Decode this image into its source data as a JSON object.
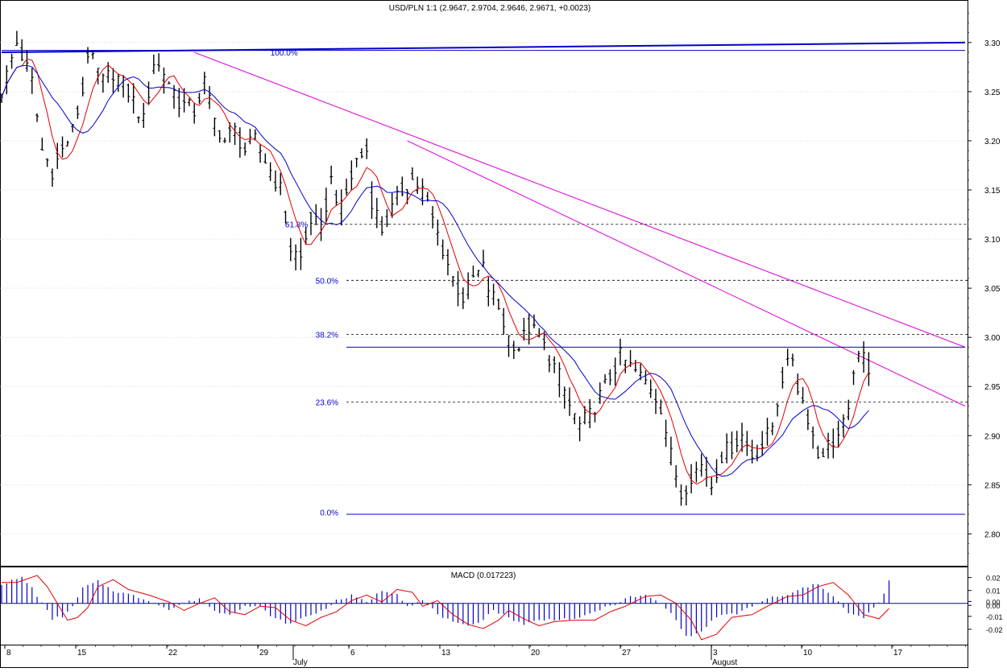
{
  "chart_data": [
    {
      "type": "candlestick",
      "title": "USD/PLN 1:1 (2.9647, 2.9704, 2.9646, 2.9671, +0.0023)",
      "ylim": [
        2.77,
        3.34
      ],
      "y_ticks": [
        "2.80",
        "2.85",
        "2.90",
        "2.95",
        "3.00",
        "3.05",
        "3.10",
        "3.15",
        "3.20",
        "3.25",
        "3.30"
      ],
      "x_tick_labels": [
        "8",
        "15",
        "22",
        "29",
        "6",
        "13",
        "20",
        "27",
        "3",
        "10",
        "17"
      ],
      "month_labels": [
        "July",
        "August"
      ],
      "grid": "horizontal-dotted",
      "series_colors": {
        "price": "#000000",
        "ma_fast": "#e00000",
        "ma_slow": "#0000cc",
        "trendlines": "#dd00dd",
        "fib": "#0000cc"
      },
      "price_path_approx": [
        [
          0,
          3.25
        ],
        [
          3,
          3.3
        ],
        [
          6,
          3.26
        ],
        [
          8,
          3.19
        ],
        [
          10,
          3.17
        ],
        [
          12,
          3.19
        ],
        [
          14,
          3.21
        ],
        [
          16,
          3.25
        ],
        [
          17,
          3.29
        ],
        [
          20,
          3.26
        ],
        [
          22,
          3.27
        ],
        [
          25,
          3.25
        ],
        [
          28,
          3.22
        ],
        [
          30,
          3.28
        ],
        [
          32,
          3.27
        ],
        [
          35,
          3.24
        ],
        [
          38,
          3.23
        ],
        [
          40,
          3.26
        ],
        [
          42,
          3.22
        ],
        [
          44,
          3.2
        ],
        [
          46,
          3.21
        ],
        [
          48,
          3.19
        ],
        [
          50,
          3.2
        ],
        [
          52,
          3.18
        ],
        [
          55,
          3.15
        ],
        [
          57,
          3.09
        ],
        [
          59,
          3.08
        ],
        [
          61,
          3.12
        ],
        [
          63,
          3.11
        ],
        [
          65,
          3.16
        ],
        [
          67,
          3.13
        ],
        [
          70,
          3.18
        ],
        [
          72,
          3.19
        ],
        [
          73,
          3.14
        ],
        [
          75,
          3.11
        ],
        [
          77,
          3.13
        ],
        [
          79,
          3.15
        ],
        [
          81,
          3.16
        ],
        [
          83,
          3.15
        ],
        [
          85,
          3.12
        ],
        [
          87,
          3.09
        ],
        [
          89,
          3.06
        ],
        [
          91,
          3.04
        ],
        [
          93,
          3.06
        ],
        [
          95,
          3.07
        ],
        [
          96,
          3.05
        ],
        [
          98,
          3.03
        ],
        [
          100,
          3.0
        ],
        [
          102,
          2.99
        ],
        [
          104,
          3.01
        ],
        [
          106,
          3.0
        ],
        [
          108,
          2.98
        ],
        [
          110,
          2.96
        ],
        [
          112,
          2.93
        ],
        [
          114,
          2.91
        ],
        [
          116,
          2.92
        ],
        [
          118,
          2.94
        ],
        [
          120,
          2.96
        ],
        [
          122,
          2.98
        ],
        [
          124,
          2.97
        ],
        [
          126,
          2.96
        ],
        [
          128,
          2.95
        ],
        [
          130,
          2.93
        ],
        [
          132,
          2.88
        ],
        [
          134,
          2.84
        ],
        [
          136,
          2.86
        ],
        [
          138,
          2.87
        ],
        [
          140,
          2.85
        ],
        [
          142,
          2.88
        ],
        [
          144,
          2.89
        ],
        [
          146,
          2.9
        ],
        [
          148,
          2.88
        ],
        [
          150,
          2.89
        ],
        [
          152,
          2.91
        ],
        [
          154,
          2.96
        ],
        [
          156,
          2.98
        ],
        [
          157,
          2.95
        ],
        [
          159,
          2.92
        ],
        [
          161,
          2.88
        ],
        [
          163,
          2.89
        ],
        [
          165,
          2.9
        ],
        [
          167,
          2.92
        ],
        [
          168,
          2.97
        ],
        [
          170,
          2.98
        ],
        [
          171,
          2.97
        ]
      ],
      "overlays": {
        "resistance_top": {
          "from": [
            0,
            3.29
          ],
          "to": [
            190,
            3.3
          ]
        },
        "trend_upper": {
          "from": [
            38,
            3.29
          ],
          "to": [
            190,
            2.99
          ]
        },
        "trend_lower": {
          "from": [
            80,
            3.2
          ],
          "to": [
            190,
            2.93
          ]
        },
        "h_line_299": {
          "from": [
            68,
            2.99
          ],
          "to": [
            190,
            2.99
          ]
        },
        "h_line_282": {
          "from": [
            68,
            2.82
          ],
          "to": [
            190,
            2.82
          ]
        }
      },
      "fib_levels": [
        {
          "label": "100.0%",
          "value": 3.29,
          "from": 60
        },
        {
          "label": "61.8%",
          "value": 3.115,
          "from": 62
        },
        {
          "label": "50.0%",
          "value": 3.058,
          "from": 68
        },
        {
          "label": "38.2%",
          "value": 3.003,
          "from": 68
        },
        {
          "label": "23.6%",
          "value": 2.934,
          "from": 68
        },
        {
          "label": "0.0%",
          "value": 2.822,
          "from": 68
        }
      ]
    },
    {
      "type": "bar",
      "title": "MACD (0.017223)",
      "ylim": [
        -0.03,
        0.026
      ],
      "y_ticks": [
        "0.02",
        "0.01",
        "0.00",
        "0.00",
        "-0.01",
        "-0.02"
      ],
      "macd_path_approx": [
        [
          0,
          0.015
        ],
        [
          4,
          0.02
        ],
        [
          6,
          0.012
        ],
        [
          8,
          0.0
        ],
        [
          10,
          -0.012
        ],
        [
          12,
          -0.01
        ],
        [
          14,
          -0.003
        ],
        [
          16,
          0.012
        ],
        [
          19,
          0.017
        ],
        [
          22,
          0.01
        ],
        [
          26,
          0.006
        ],
        [
          30,
          0.001
        ],
        [
          33,
          -0.005
        ],
        [
          36,
          0.0
        ],
        [
          39,
          0.004
        ],
        [
          42,
          -0.006
        ],
        [
          45,
          -0.008
        ],
        [
          48,
          -0.002
        ],
        [
          51,
          -0.003
        ],
        [
          54,
          -0.012
        ],
        [
          57,
          -0.016
        ],
        [
          60,
          -0.01
        ],
        [
          63,
          -0.006
        ],
        [
          66,
          0.002
        ],
        [
          69,
          0.006
        ],
        [
          72,
          0.001
        ],
        [
          75,
          0.01
        ],
        [
          78,
          0.008
        ],
        [
          80,
          -0.002
        ],
        [
          83,
          0.002
        ],
        [
          86,
          -0.008
        ],
        [
          89,
          -0.015
        ],
        [
          92,
          -0.018
        ],
        [
          95,
          -0.012
        ],
        [
          97,
          -0.005
        ],
        [
          100,
          -0.011
        ],
        [
          103,
          -0.016
        ],
        [
          106,
          -0.013
        ],
        [
          110,
          -0.012
        ],
        [
          114,
          -0.012
        ],
        [
          117,
          -0.006
        ],
        [
          120,
          -0.002
        ],
        [
          124,
          0.005
        ],
        [
          127,
          0.006
        ],
        [
          130,
          0.0
        ],
        [
          133,
          -0.012
        ],
        [
          135,
          -0.026
        ],
        [
          138,
          -0.022
        ],
        [
          141,
          -0.01
        ],
        [
          145,
          -0.008
        ],
        [
          148,
          -0.002
        ],
        [
          152,
          0.005
        ],
        [
          155,
          0.006
        ],
        [
          158,
          0.012
        ],
        [
          161,
          0.015
        ],
        [
          164,
          0.006
        ],
        [
          167,
          -0.008
        ],
        [
          170,
          -0.011
        ],
        [
          173,
          0.0
        ],
        [
          175,
          0.017
        ]
      ],
      "signal_lag_points": 3
    }
  ]
}
